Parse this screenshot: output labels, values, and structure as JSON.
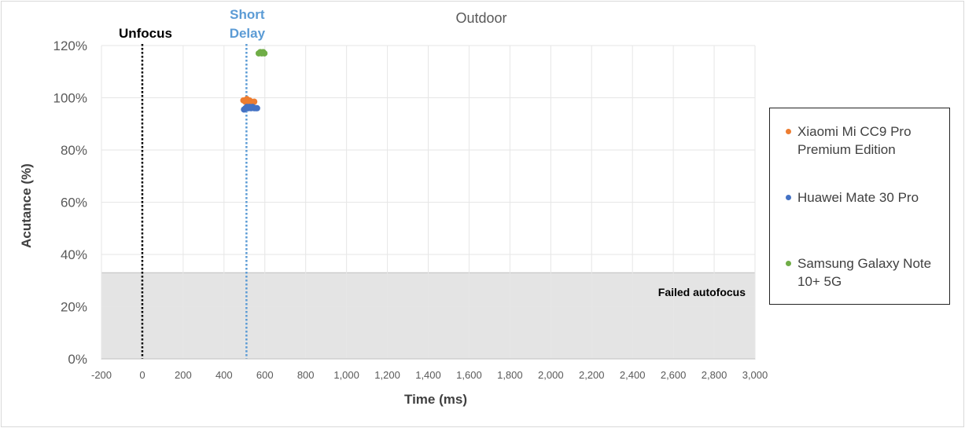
{
  "chart_data": {
    "type": "scatter",
    "title": "Outdoor",
    "xlabel": "Time (ms)",
    "ylabel": "Acutance (%)",
    "xlim": [
      -200,
      3000
    ],
    "ylim": [
      0,
      120
    ],
    "x_ticks": [
      "-200",
      "0",
      "200",
      "400",
      "600",
      "800",
      "1,000",
      "1,200",
      "1,400",
      "1,600",
      "1,800",
      "2,000",
      "2,200",
      "2,400",
      "2,600",
      "2,800",
      "3,000"
    ],
    "y_ticks": [
      "0%",
      "20%",
      "40%",
      "60%",
      "80%",
      "100%",
      "120%"
    ],
    "grid": true,
    "legend_position": "right",
    "failed_region": {
      "label": "Failed autofocus",
      "y_from": 0,
      "y_to": 33,
      "color": "#e4e4e4"
    },
    "reference_lines": [
      {
        "label": "Unfocus",
        "x": 0,
        "color": "#000000"
      },
      {
        "label_line1": "Short",
        "label_line2": "Delay",
        "x": 510,
        "color": "#5b9bd5"
      }
    ],
    "series": [
      {
        "name": "Xiaomi Mi CC9 Pro Premium Edition",
        "color": "#ed7d31",
        "points": [
          [
            495,
            99
          ],
          [
            505,
            98.5
          ],
          [
            512,
            99.5
          ],
          [
            518,
            98
          ],
          [
            525,
            99
          ],
          [
            532,
            98.5
          ],
          [
            540,
            98
          ],
          [
            548,
            98.5
          ]
        ]
      },
      {
        "name": "Huawei Mate 30 Pro",
        "color": "#4472c4",
        "points": [
          [
            498,
            95.5
          ],
          [
            505,
            96
          ],
          [
            512,
            96.5
          ],
          [
            518,
            96
          ],
          [
            525,
            96.5
          ],
          [
            532,
            96
          ],
          [
            540,
            96.5
          ],
          [
            548,
            96
          ],
          [
            556,
            96
          ],
          [
            562,
            96
          ]
        ]
      },
      {
        "name": "Samsung Galaxy Note 10+ 5G",
        "color": "#70ad47",
        "points": [
          [
            570,
            117
          ],
          [
            578,
            117.5
          ],
          [
            585,
            117
          ],
          [
            592,
            117.5
          ],
          [
            598,
            117
          ]
        ]
      }
    ]
  },
  "legend": {
    "items": [
      {
        "line1": "Xiaomi Mi CC9 Pro",
        "line2": "Premium Edition",
        "color": "#ed7d31"
      },
      {
        "line1": "Huawei Mate 30 Pro",
        "line2": "",
        "color": "#4472c4"
      },
      {
        "line1": "Samsung Galaxy Note",
        "line2": "10+ 5G",
        "color": "#70ad47"
      }
    ]
  }
}
